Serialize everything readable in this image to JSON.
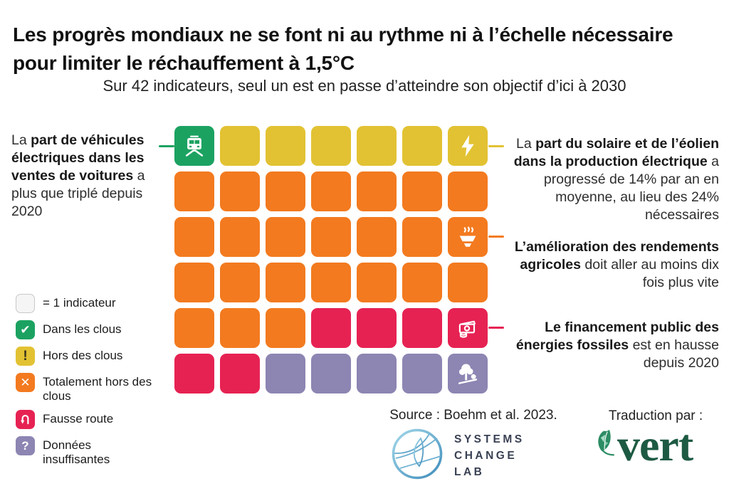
{
  "title": "Les progrès mondiaux ne se font ni au rythme ni à l’échelle nécessaire pour limiter le réchauffement à 1,5°C",
  "subtitle": "Sur 42 indicateurs, seul un est en passe d’atteindre son objectif d’ici à 2030",
  "colors": {
    "on_track": "#1ba261",
    "off_track": "#e2c233",
    "well_off_track": "#f37a1f",
    "wrong_direction": "#e62253",
    "insufficient_data": "#8d85b2"
  },
  "chart_data": {
    "type": "heatmap",
    "subtype": "waffle",
    "title": "Les progrès mondiaux ne se font ni au rythme ni à l’échelle nécessaire pour limiter le réchauffement à 1,5°C",
    "unit_note": "= 1 indicateur",
    "total_units": 42,
    "categories": [
      "Dans les clous",
      "Hors des clous",
      "Totalement hors des clous",
      "Fausse route",
      "Données insuffisantes"
    ],
    "values": [
      1,
      6,
      24,
      6,
      5
    ],
    "category_colors": [
      "#1ba261",
      "#e2c233",
      "#f37a1f",
      "#e62253",
      "#8d85b2"
    ],
    "legend_position": "bottom-left"
  },
  "grid": {
    "rows": 6,
    "cols": 7,
    "cells": [
      [
        "on_track:tram-icon",
        "off_track",
        "off_track",
        "off_track",
        "off_track",
        "off_track",
        "off_track:bolt-icon"
      ],
      [
        "well_off_track",
        "well_off_track",
        "well_off_track",
        "well_off_track",
        "well_off_track",
        "well_off_track",
        "well_off_track"
      ],
      [
        "well_off_track",
        "well_off_track",
        "well_off_track",
        "well_off_track",
        "well_off_track",
        "well_off_track",
        "well_off_track:bowl-icon"
      ],
      [
        "well_off_track",
        "well_off_track",
        "well_off_track",
        "well_off_track",
        "well_off_track",
        "well_off_track",
        "well_off_track"
      ],
      [
        "well_off_track",
        "well_off_track",
        "well_off_track",
        "wrong_direction",
        "wrong_direction",
        "wrong_direction",
        "wrong_direction:money-icon"
      ],
      [
        "wrong_direction",
        "wrong_direction",
        "insufficient_data",
        "insufficient_data",
        "insufficient_data",
        "insufficient_data",
        "insufficient_data:tree-icon"
      ]
    ]
  },
  "annotations": {
    "left_ev": {
      "segments": [
        {
          "t": "La ",
          "b": false
        },
        {
          "t": "part de véhicules électriques dans les ventes de voitures",
          "b": true
        },
        {
          "t": " a plus que triplé depuis 2020",
          "b": false
        }
      ]
    },
    "right_solar": {
      "segments": [
        {
          "t": "La ",
          "b": false
        },
        {
          "t": "part du solaire et de l’éolien dans la production électrique",
          "b": true
        },
        {
          "t": " a progressé de 14% par an en moyenne, au lieu des 24% nécessaires",
          "b": false
        }
      ]
    },
    "right_agri": {
      "segments": [
        {
          "t": "L’amélioration des rendements agricoles",
          "b": true
        },
        {
          "t": " doit aller au moins dix fois plus vite",
          "b": false
        }
      ]
    },
    "right_fossil": {
      "segments": [
        {
          "t": "Le financement public des énergies fossiles",
          "b": true
        },
        {
          "t": " est en hausse depuis 2020",
          "b": false
        }
      ]
    }
  },
  "legend": {
    "items": [
      {
        "label": "= 1 indicateur",
        "swatch": "empty",
        "icon": ""
      },
      {
        "label": "Dans les clous",
        "swatch": "on_track",
        "icon": "check-icon"
      },
      {
        "label": "Hors des clous",
        "swatch": "off_track",
        "icon": "exclamation-icon"
      },
      {
        "label": "Totalement hors des clous",
        "swatch": "well_off_track",
        "icon": "x-icon"
      },
      {
        "label": "Fausse route",
        "swatch": "wrong_direction",
        "icon": "u-turn-icon"
      },
      {
        "label": "Données insuffisantes",
        "swatch": "insufficient_data",
        "icon": "question-icon"
      }
    ]
  },
  "footer": {
    "source_label": "Source : Boehm et al. 2023.",
    "scl_logo_lines": [
      "SYSTEMS",
      "CHANGE",
      "LAB"
    ],
    "translation_label": "Traduction par :",
    "vert_wordmark": "vert"
  }
}
